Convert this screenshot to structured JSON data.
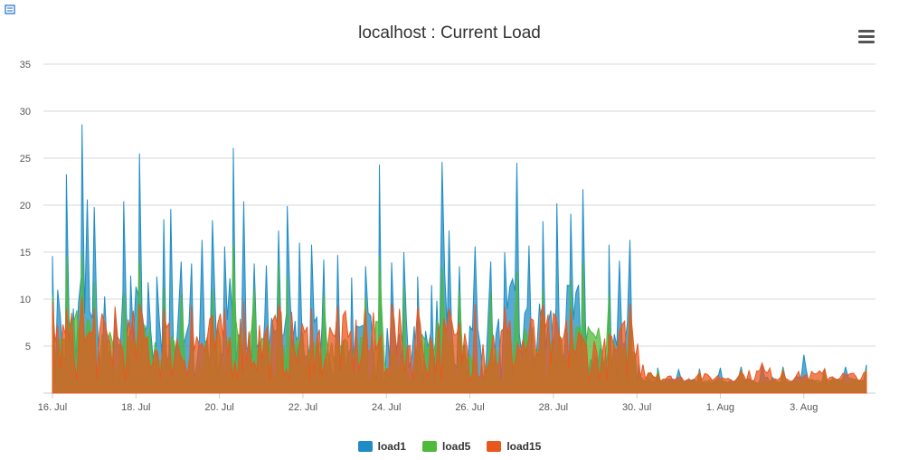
{
  "chart_data": {
    "type": "area",
    "title": "localhost : Current Load",
    "xlabel": "",
    "ylabel": "",
    "ylim": [
      0,
      35
    ],
    "yticks": [
      5,
      10,
      15,
      20,
      25,
      30,
      35
    ],
    "xlim": [
      "16 Jul",
      "4 Aug 12:00"
    ],
    "xtick_labels": [
      "16. Jul",
      "18. Jul",
      "20. Jul",
      "22. Jul",
      "24. Jul",
      "26. Jul",
      "28. Jul",
      "30. Jul",
      "1. Aug",
      "3. Aug"
    ],
    "grid": true,
    "legend_position": "bottom-center",
    "series": [
      {
        "name": "load1",
        "color": "#1f8dc5",
        "points": [
          [
            "2015-07-16 00:00",
            14.6
          ],
          [
            "2015-07-16 03:00",
            11.0
          ],
          [
            "2015-07-16 08:00",
            23.3
          ],
          [
            "2015-07-16 12:00",
            9.0
          ],
          [
            "2015-07-16 17:00",
            28.6
          ],
          [
            "2015-07-16 20:00",
            20.6
          ],
          [
            "2015-07-17 00:00",
            19.8
          ],
          [
            "2015-07-17 06:00",
            10.3
          ],
          [
            "2015-07-17 12:00",
            8.5
          ],
          [
            "2015-07-17 17:00",
            20.4
          ],
          [
            "2015-07-17 21:00",
            12.5
          ],
          [
            "2015-07-18 02:00",
            25.5
          ],
          [
            "2015-07-18 07:00",
            11.8
          ],
          [
            "2015-07-18 12:00",
            12.4
          ],
          [
            "2015-07-18 16:00",
            18.5
          ],
          [
            "2015-07-18 20:00",
            19.6
          ],
          [
            "2015-07-19 02:00",
            14.0
          ],
          [
            "2015-07-19 08:00",
            13.8
          ],
          [
            "2015-07-19 14:00",
            16.3
          ],
          [
            "2015-07-19 20:00",
            18.4
          ],
          [
            "2015-07-20 03:00",
            15.6
          ],
          [
            "2015-07-20 08:00",
            26.1
          ],
          [
            "2015-07-20 14:00",
            20.4
          ],
          [
            "2015-07-20 20:00",
            13.8
          ],
          [
            "2015-07-21 03:00",
            13.6
          ],
          [
            "2015-07-21 10:00",
            17.3
          ],
          [
            "2015-07-21 15:00",
            19.9
          ],
          [
            "2015-07-21 22:00",
            16.0
          ],
          [
            "2015-07-22 05:00",
            15.8
          ],
          [
            "2015-07-22 12:00",
            14.2
          ],
          [
            "2015-07-22 20:00",
            14.7
          ],
          [
            "2015-07-23 04:00",
            12.3
          ],
          [
            "2015-07-23 12:00",
            13.5
          ],
          [
            "2015-07-23 20:00",
            24.3
          ],
          [
            "2015-07-24 03:00",
            13.9
          ],
          [
            "2015-07-24 10:00",
            15.0
          ],
          [
            "2015-07-24 18:00",
            12.4
          ],
          [
            "2015-07-25 02:00",
            11.5
          ],
          [
            "2015-07-25 08:00",
            24.6
          ],
          [
            "2015-07-25 12:00",
            17.3
          ],
          [
            "2015-07-25 18:00",
            13.5
          ],
          [
            "2015-07-26 03:00",
            15.6
          ],
          [
            "2015-07-26 12:00",
            14.0
          ],
          [
            "2015-07-26 20:00",
            15.0
          ],
          [
            "2015-07-27 03:00",
            24.5
          ],
          [
            "2015-07-27 10:00",
            15.7
          ],
          [
            "2015-07-27 18:00",
            18.3
          ],
          [
            "2015-07-28 02:00",
            20.2
          ],
          [
            "2015-07-28 10:00",
            19.1
          ],
          [
            "2015-07-28 17:00",
            21.7
          ],
          [
            "2015-07-29 00:00",
            4.0
          ],
          [
            "2015-07-29 08:00",
            15.8
          ],
          [
            "2015-07-29 14:00",
            14.1
          ],
          [
            "2015-07-29 20:00",
            16.3
          ],
          [
            "2015-07-30 01:00",
            3.0
          ],
          [
            "2015-07-30 12:00",
            2.7
          ],
          [
            "2015-07-31 00:00",
            2.5
          ],
          [
            "2015-07-31 12:00",
            2.6
          ],
          [
            "2015-08-01 00:00",
            2.7
          ],
          [
            "2015-08-01 12:00",
            2.8
          ],
          [
            "2015-08-02 00:00",
            2.9
          ],
          [
            "2015-08-02 12:00",
            2.8
          ],
          [
            "2015-08-03 00:00",
            4.1
          ],
          [
            "2015-08-03 12:00",
            2.6
          ],
          [
            "2015-08-04 00:00",
            2.8
          ],
          [
            "2015-08-04 12:00",
            3.0
          ]
        ]
      },
      {
        "name": "load5",
        "color": "#4fb93a",
        "points": [
          [
            "2015-07-16 00:00",
            10.5
          ],
          [
            "2015-07-16 08:00",
            14.5
          ],
          [
            "2015-07-16 17:00",
            15.0
          ],
          [
            "2015-07-17 00:00",
            11.8
          ],
          [
            "2015-07-17 17:00",
            10.8
          ],
          [
            "2015-07-18 02:00",
            14.3
          ],
          [
            "2015-07-18 16:00",
            11.3
          ],
          [
            "2015-07-19 02:00",
            10.5
          ],
          [
            "2015-07-19 20:00",
            11.0
          ],
          [
            "2015-07-20 08:00",
            15.9
          ],
          [
            "2015-07-20 20:00",
            11.2
          ],
          [
            "2015-07-21 10:00",
            13.8
          ],
          [
            "2015-07-21 15:00",
            12.5
          ],
          [
            "2015-07-22 12:00",
            10.6
          ],
          [
            "2015-07-23 12:00",
            10.2
          ],
          [
            "2015-07-23 20:00",
            14.5
          ],
          [
            "2015-07-24 10:00",
            11.5
          ],
          [
            "2015-07-25 08:00",
            13.4
          ],
          [
            "2015-07-25 18:00",
            11.0
          ],
          [
            "2015-07-26 12:00",
            10.8
          ],
          [
            "2015-07-27 03:00",
            13.0
          ],
          [
            "2015-07-27 18:00",
            11.0
          ],
          [
            "2015-07-28 10:00",
            12.0
          ],
          [
            "2015-07-28 17:00",
            14.0
          ],
          [
            "2015-07-29 08:00",
            10.5
          ],
          [
            "2015-07-29 20:00",
            9.5
          ],
          [
            "2015-07-30 12:00",
            2.3
          ],
          [
            "2015-07-31 12:00",
            2.4
          ],
          [
            "2015-08-01 12:00",
            2.5
          ],
          [
            "2015-08-02 12:00",
            2.6
          ],
          [
            "2015-08-03 12:00",
            2.4
          ],
          [
            "2015-08-04 12:00",
            2.6
          ]
        ]
      },
      {
        "name": "load15",
        "color": "#e8581e",
        "points": [
          [
            "2015-07-16 00:00",
            9.7
          ],
          [
            "2015-07-16 08:00",
            9.0
          ],
          [
            "2015-07-16 17:00",
            10.2
          ],
          [
            "2015-07-17 00:00",
            9.0
          ],
          [
            "2015-07-17 12:00",
            9.2
          ],
          [
            "2015-07-18 02:00",
            9.5
          ],
          [
            "2015-07-18 16:00",
            9.0
          ],
          [
            "2015-07-19 08:00",
            9.3
          ],
          [
            "2015-07-20 03:00",
            9.0
          ],
          [
            "2015-07-20 14:00",
            9.8
          ],
          [
            "2015-07-21 10:00",
            9.4
          ],
          [
            "2015-07-22 05:00",
            9.0
          ],
          [
            "2015-07-22 20:00",
            9.3
          ],
          [
            "2015-07-23 12:00",
            9.0
          ],
          [
            "2015-07-24 03:00",
            9.6
          ],
          [
            "2015-07-24 18:00",
            9.2
          ],
          [
            "2015-07-25 12:00",
            9.0
          ],
          [
            "2015-07-26 03:00",
            9.5
          ],
          [
            "2015-07-26 20:00",
            9.2
          ],
          [
            "2015-07-27 18:00",
            9.4
          ],
          [
            "2015-07-28 10:00",
            9.0
          ],
          [
            "2015-07-29 08:00",
            6.2
          ],
          [
            "2015-07-29 20:00",
            9.5
          ],
          [
            "2015-07-30 12:00",
            2.0
          ],
          [
            "2015-07-31 12:00",
            2.2
          ],
          [
            "2015-08-01 12:00",
            2.3
          ],
          [
            "2015-08-02 00:00",
            3.2
          ],
          [
            "2015-08-02 12:00",
            2.4
          ],
          [
            "2015-08-03 12:00",
            2.6
          ],
          [
            "2015-08-04 12:00",
            2.3
          ]
        ]
      }
    ]
  }
}
